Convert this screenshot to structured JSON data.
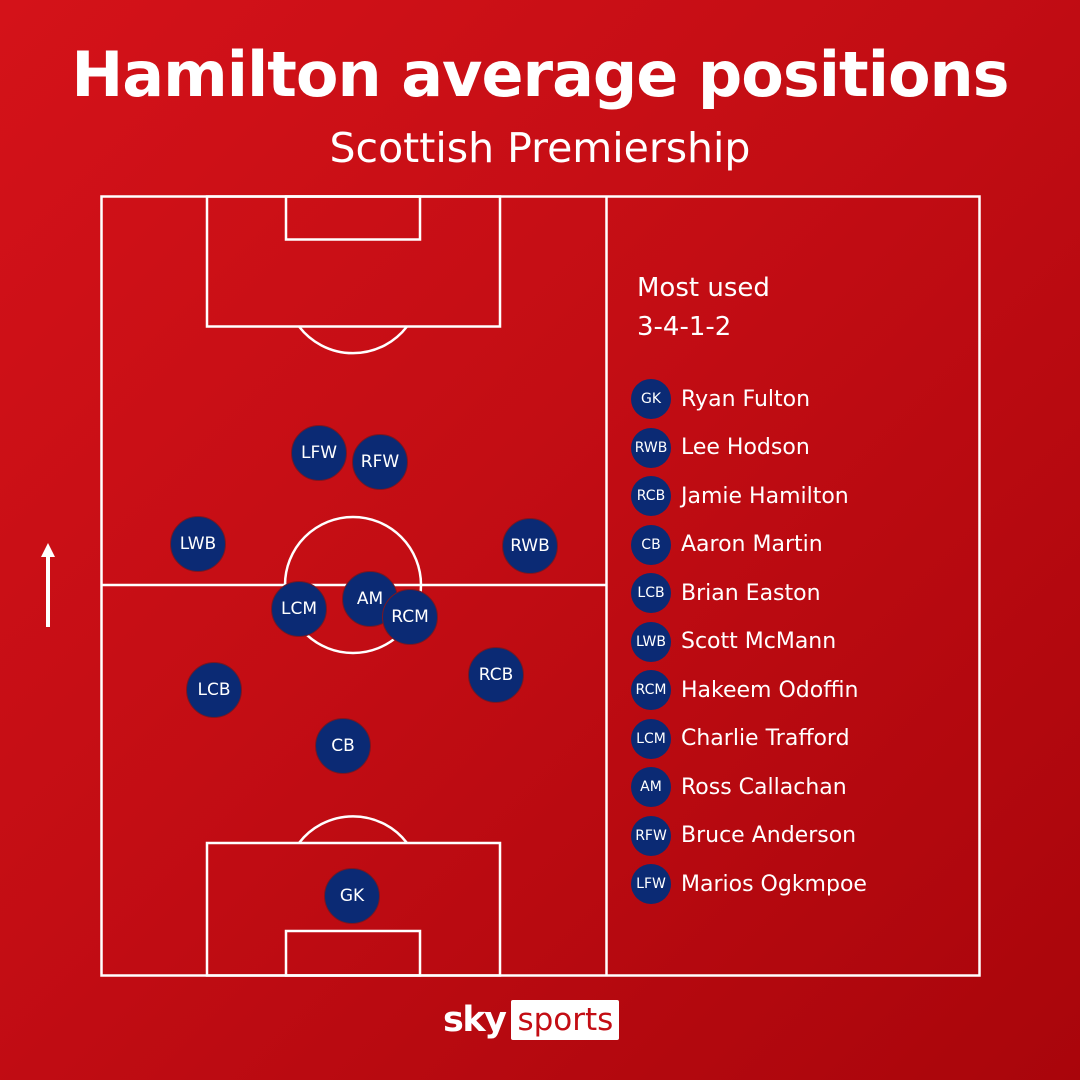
{
  "title": "Hamilton average positions",
  "subtitle": "Scottish Premiership",
  "legend": {
    "heading_line1": "Most used",
    "heading_line2": "3-4-1-2",
    "players": [
      {
        "pos": "GK",
        "name": "Ryan Fulton"
      },
      {
        "pos": "RWB",
        "name": "Lee Hodson"
      },
      {
        "pos": "RCB",
        "name": "Jamie Hamilton"
      },
      {
        "pos": "CB",
        "name": "Aaron Martin"
      },
      {
        "pos": "LCB",
        "name": "Brian Easton"
      },
      {
        "pos": "LWB",
        "name": "Scott McMann"
      },
      {
        "pos": "RCM",
        "name": "Hakeem Odoffin"
      },
      {
        "pos": "LCM",
        "name": "Charlie Trafford"
      },
      {
        "pos": "AM",
        "name": "Ross Callachan"
      },
      {
        "pos": "RFW",
        "name": "Bruce Anderson"
      },
      {
        "pos": "LFW",
        "name": "Marios Ogkmpoe"
      }
    ]
  },
  "pitch_markers": [
    "LFW",
    "RFW",
    "AM",
    "LWB",
    "RWB",
    "LCM",
    "RCM",
    "LCB",
    "RCB",
    "CB",
    "GK"
  ],
  "logo": {
    "sky": "sky",
    "sports": "sports"
  },
  "colors": {
    "background": "#c30d14",
    "marker": "#0b2a74",
    "lines": "#ffffff"
  },
  "icons": {
    "direction": "up-arrow-icon"
  }
}
